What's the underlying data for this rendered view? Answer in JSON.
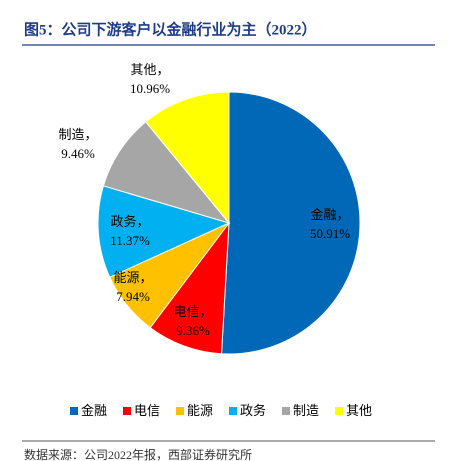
{
  "chart_data": {
    "type": "pie",
    "title": "图5：公司下游客户以金融行业为主（2022）",
    "categories": [
      "金融",
      "电信",
      "能源",
      "政务",
      "制造",
      "其他"
    ],
    "values": [
      50.91,
      9.36,
      7.94,
      11.37,
      9.46,
      10.96
    ],
    "value_labels": [
      "50.91%",
      "9.36%",
      "7.94%",
      "11.37%",
      "9.46%",
      "10.96%"
    ],
    "colors": [
      "#0068b7",
      "#ff0000",
      "#ffc000",
      "#00b0f0",
      "#a6a6a6",
      "#ffff00"
    ],
    "source": "数据来源：公司2022年报，西部证券研究所"
  }
}
